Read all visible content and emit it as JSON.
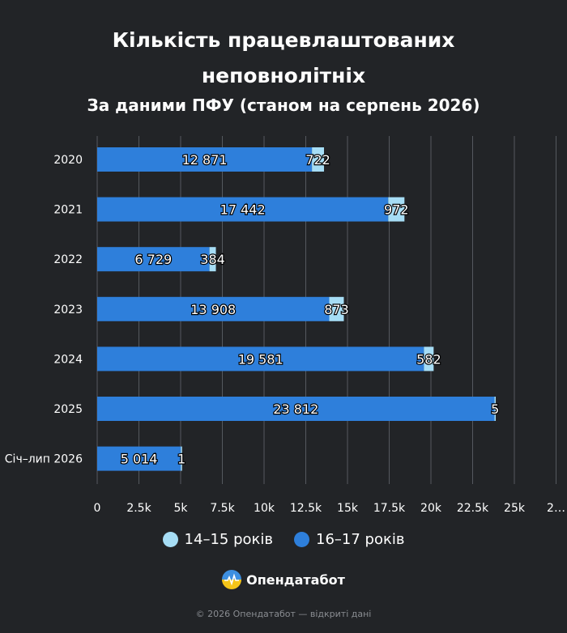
{
  "chart_data": {
    "type": "bar",
    "orientation": "horizontal",
    "stacked": true,
    "title": "Кількість працевлаштованих неповнолітніх",
    "subtitle": "За даними ПФУ (станом на серпень 2026)",
    "categories": [
      "2020",
      "2021",
      "2022",
      "2023",
      "2024",
      "2025",
      "Січ–лип 2026"
    ],
    "series": [
      {
        "name": "16–17 років",
        "color": "#2e7fdb",
        "values": [
          12871,
          17442,
          6729,
          13908,
          19581,
          23812,
          5014
        ],
        "labels": [
          "12 871",
          "17 442",
          "6 729",
          "13 908",
          "19 581",
          "23 812",
          "5 014"
        ]
      },
      {
        "name": "14–15 років",
        "color": "#a6ddf5",
        "values": [
          722,
          972,
          384,
          873,
          582,
          5,
          1
        ],
        "labels": [
          "722",
          "972",
          "384",
          "873",
          "582",
          "5",
          "1"
        ]
      }
    ],
    "x_ticks": [
      "0",
      "2.5k",
      "5k",
      "7.5k",
      "10k",
      "12.5k",
      "15k",
      "17.5k",
      "20k",
      "22.5k",
      "25k",
      "2…"
    ],
    "xlim": [
      0,
      27500
    ],
    "grid": true,
    "legend_position": "bottom"
  },
  "legend": [
    {
      "label": "14–15 років",
      "color": "#a6ddf5"
    },
    {
      "label": "16–17 років",
      "color": "#2e7fdb"
    }
  ],
  "brand": {
    "name": "Опендатабот"
  },
  "footer": {
    "copyright": "© 2026 Опендатабот — відкриті дані"
  }
}
